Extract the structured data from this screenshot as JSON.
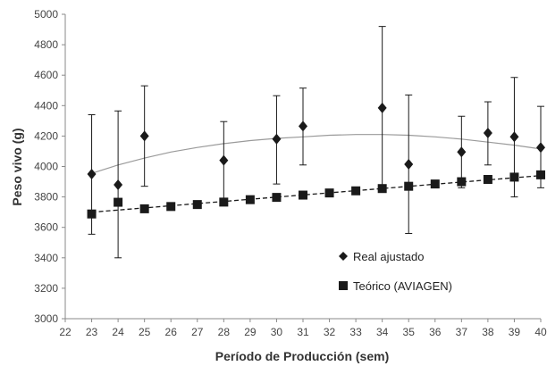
{
  "chart_data": {
    "type": "scatter",
    "title": "",
    "xlabel": "Período de Producción (sem)",
    "ylabel": "Peso vivo (g)",
    "xlim": [
      22,
      40
    ],
    "ylim": [
      3000,
      5000
    ],
    "x_ticks": [
      22,
      23,
      24,
      25,
      26,
      27,
      28,
      29,
      30,
      31,
      32,
      33,
      34,
      35,
      36,
      37,
      38,
      39,
      40
    ],
    "y_ticks": [
      3000,
      3200,
      3400,
      3600,
      3800,
      4000,
      4200,
      4400,
      4600,
      4800,
      5000
    ],
    "grid": false,
    "legend_position": "lower-center",
    "series": [
      {
        "name": "Real ajustado",
        "marker": "diamond",
        "color": "#1a1a1a",
        "x": [
          23,
          24,
          25,
          28,
          30,
          31,
          34,
          35,
          37,
          38,
          39,
          40
        ],
        "y": [
          3950,
          3880,
          4200,
          4040,
          4180,
          4265,
          4385,
          4015,
          4095,
          4220,
          4195,
          4125
        ],
        "err_low": [
          3555,
          3400,
          3870,
          3780,
          3885,
          4010,
          3850,
          3560,
          3860,
          4010,
          3800,
          3860
        ],
        "err_high": [
          4340,
          4365,
          4530,
          4295,
          4465,
          4515,
          4920,
          4470,
          4330,
          4425,
          4585,
          4395
        ]
      },
      {
        "name": "Teórico (AVIAGEN)",
        "marker": "square",
        "color": "#1a1a1a",
        "x": [
          23,
          24,
          25,
          26,
          27,
          28,
          29,
          30,
          31,
          32,
          33,
          34,
          35,
          36,
          37,
          38,
          39,
          40
        ],
        "y": [
          3688,
          3765,
          3722,
          3737,
          3750,
          3766,
          3782,
          3797,
          3812,
          3826,
          3840,
          3855,
          3870,
          3885,
          3900,
          3915,
          3930,
          3945
        ]
      }
    ],
    "trendlines": [
      {
        "series": "Real ajustado",
        "style": "solid",
        "color": "#9a9a9a",
        "x": [
          23,
          24,
          25,
          26,
          27,
          28,
          29,
          30,
          31,
          32,
          33,
          34,
          35,
          36,
          37,
          38,
          39,
          40
        ],
        "y": [
          3955,
          4010,
          4055,
          4095,
          4125,
          4150,
          4170,
          4185,
          4195,
          4205,
          4210,
          4210,
          4205,
          4195,
          4180,
          4160,
          4140,
          4115
        ]
      },
      {
        "series": "Teórico (AVIAGEN)",
        "style": "dashed",
        "color": "#1a1a1a",
        "x": [
          23,
          40
        ],
        "y": [
          3700,
          3940
        ]
      }
    ]
  }
}
